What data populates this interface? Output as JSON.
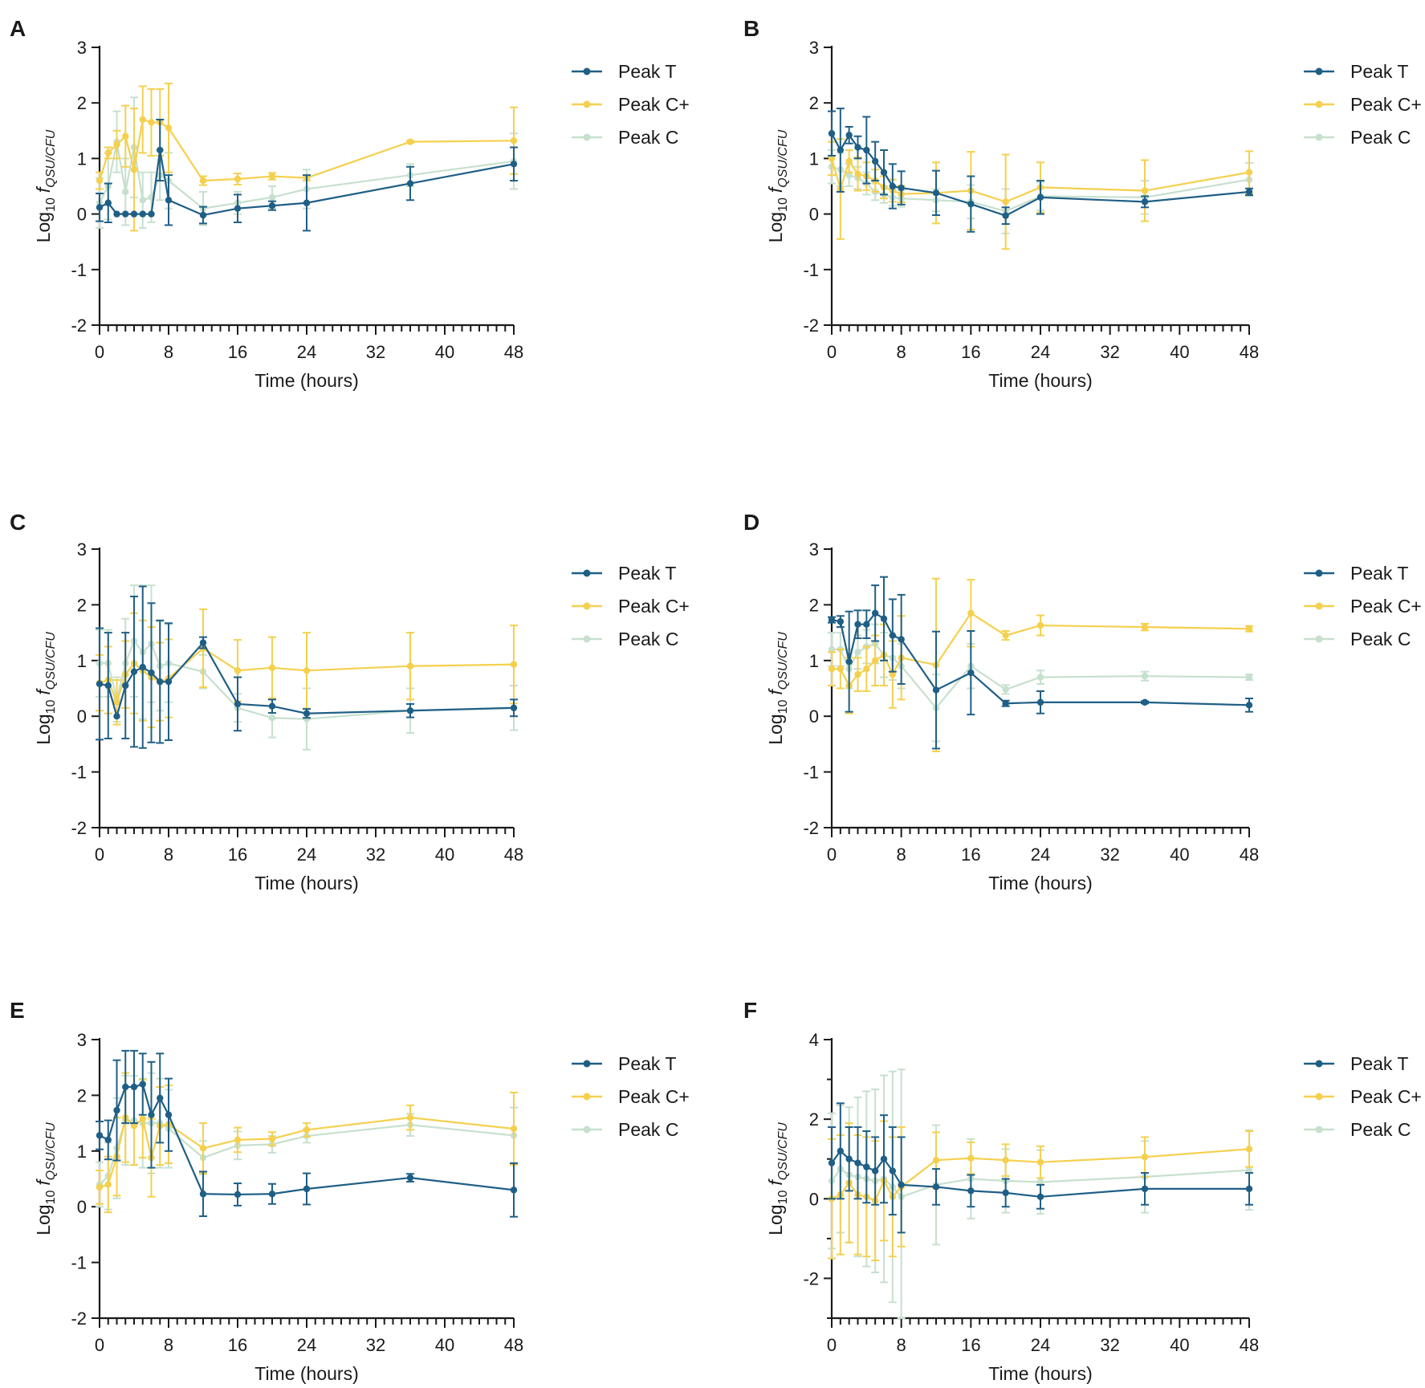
{
  "figure_title": "",
  "series_colors": {
    "Peak T": "#1f5f86",
    "Peak C+": "#f5d04e",
    "Peak C": "#c7e0ce"
  },
  "chart_data": [
    {
      "type": "line",
      "panel": "A",
      "xlabel": "Time (hours)",
      "ylabel_prefix": "Log",
      "ylabel_sub": "10",
      "ylabel_f": "f",
      "ylabel_fsub": "QSU/CFU",
      "xlim": [
        0,
        48
      ],
      "ylim": [
        -2,
        3
      ],
      "xticks": [
        0,
        8,
        16,
        24,
        32,
        40,
        48
      ],
      "yticks": [
        -2,
        -1,
        0,
        1,
        2,
        3
      ],
      "xtick_labels": [
        "0",
        "8",
        "16",
        "24",
        "32",
        "40",
        "48"
      ],
      "ytick_labels": [
        "-2",
        "-1",
        "0",
        "1",
        "2",
        "3"
      ],
      "legend": [
        "Peak T",
        "Peak C+",
        "Peak C"
      ],
      "x": [
        0,
        1,
        2,
        3,
        4,
        5,
        6,
        7,
        8,
        12,
        16,
        20,
        24,
        36,
        48
      ],
      "series": [
        {
          "name": "Peak T",
          "values": [
            0.12,
            0.2,
            0.0,
            0.0,
            0.0,
            0.0,
            0.0,
            1.15,
            0.25,
            -0.02,
            0.1,
            0.15,
            0.2,
            0.55,
            0.9
          ],
          "errors": [
            0.25,
            0.35,
            0,
            0,
            0,
            0,
            0,
            0.55,
            0.45,
            0.15,
            0.25,
            0.08,
            0.5,
            0.3,
            0.3
          ]
        },
        {
          "name": "Peak C+",
          "values": [
            0.6,
            1.1,
            1.25,
            1.4,
            0.8,
            1.7,
            1.65,
            1.65,
            1.55,
            0.6,
            0.63,
            0.68,
            0.65,
            1.3,
            1.32
          ],
          "errors": [
            0.15,
            0.1,
            0.25,
            0.55,
            1.1,
            0.6,
            0.6,
            0.6,
            0.8,
            0.08,
            0.1,
            0.06,
            0.05,
            0.02,
            0.6
          ]
        },
        {
          "name": "Peak C",
          "values": [
            0.2,
            0.5,
            1.3,
            0.4,
            1.2,
            0.25,
            0.3,
            0.7,
            0.6,
            0.1,
            0.2,
            0.3,
            0.45,
            0.7,
            0.95
          ],
          "errors": [
            0.45,
            0.6,
            0.55,
            0.6,
            0.9,
            0.5,
            0.45,
            0.45,
            0.5,
            0.3,
            0.2,
            0.2,
            0.35,
            0.2,
            0.5
          ]
        }
      ]
    },
    {
      "type": "line",
      "panel": "B",
      "xlabel": "Time (hours)",
      "ylabel_prefix": "Log",
      "ylabel_sub": "10",
      "ylabel_f": "f",
      "ylabel_fsub": "QSU/CFU",
      "xlim": [
        0,
        48
      ],
      "ylim": [
        -2,
        3
      ],
      "xticks": [
        0,
        8,
        16,
        24,
        32,
        40,
        48
      ],
      "yticks": [
        -2,
        -1,
        0,
        1,
        2,
        3
      ],
      "xtick_labels": [
        "0",
        "8",
        "16",
        "24",
        "32",
        "40",
        "48"
      ],
      "ytick_labels": [
        "-2",
        "-1",
        "0",
        "1",
        "2",
        "3"
      ],
      "legend": [
        "Peak T",
        "Peak C+",
        "Peak C"
      ],
      "x": [
        0,
        1,
        2,
        3,
        4,
        5,
        6,
        7,
        8,
        12,
        16,
        20,
        24,
        36,
        48
      ],
      "series": [
        {
          "name": "Peak T",
          "values": [
            1.45,
            1.15,
            1.42,
            1.2,
            1.15,
            0.95,
            0.75,
            0.5,
            0.47,
            0.38,
            0.18,
            -0.03,
            0.3,
            0.22,
            0.4
          ],
          "errors": [
            0.4,
            0.75,
            0.15,
            0.2,
            0.6,
            0.35,
            0.4,
            0.4,
            0.3,
            0.4,
            0.5,
            0.15,
            0.3,
            0.1,
            0.06
          ]
        },
        {
          "name": "Peak C+",
          "values": [
            1.0,
            0.45,
            0.95,
            0.72,
            0.68,
            0.6,
            0.48,
            0.42,
            0.36,
            0.38,
            0.42,
            0.22,
            0.48,
            0.42,
            0.75
          ],
          "errors": [
            0.3,
            0.9,
            0.2,
            0.3,
            0.25,
            0.2,
            0.2,
            0.2,
            0.15,
            0.55,
            0.7,
            0.85,
            0.45,
            0.55,
            0.38
          ]
        },
        {
          "name": "Peak C",
          "values": [
            0.85,
            0.8,
            0.7,
            0.65,
            0.55,
            0.4,
            0.35,
            0.3,
            0.28,
            0.25,
            0.22,
            0.05,
            0.32,
            0.3,
            0.62
          ],
          "errors": [
            0.3,
            0.3,
            0.2,
            0.2,
            0.2,
            0.15,
            0.15,
            0.15,
            0.15,
            0.2,
            0.3,
            0.4,
            0.25,
            0.3,
            0.3
          ]
        }
      ]
    },
    {
      "type": "line",
      "panel": "C",
      "xlabel": "Time (hours)",
      "ylabel_prefix": "Log",
      "ylabel_sub": "10",
      "ylabel_f": "f",
      "ylabel_fsub": "QSU/CFU",
      "xlim": [
        0,
        48
      ],
      "ylim": [
        -2,
        3
      ],
      "xticks": [
        0,
        8,
        16,
        24,
        32,
        40,
        48
      ],
      "yticks": [
        -2,
        -1,
        0,
        1,
        2,
        3
      ],
      "xtick_labels": [
        "0",
        "8",
        "16",
        "24",
        "32",
        "40",
        "48"
      ],
      "ytick_labels": [
        "-2",
        "-1",
        "0",
        "1",
        "2",
        "3"
      ],
      "legend": [
        "Peak T",
        "Peak C+",
        "Peak C"
      ],
      "x": [
        0,
        1,
        2,
        3,
        4,
        5,
        6,
        7,
        8,
        12,
        16,
        20,
        24,
        36,
        48
      ],
      "series": [
        {
          "name": "Peak T",
          "values": [
            0.58,
            0.55,
            0.0,
            0.55,
            0.8,
            0.88,
            0.78,
            0.62,
            0.62,
            1.32,
            0.22,
            0.18,
            0.05,
            0.1,
            0.15
          ],
          "errors": [
            1.0,
            0.95,
            0,
            0.95,
            1.35,
            1.45,
            1.25,
            1.1,
            1.05,
            0.1,
            0.48,
            0.12,
            0.08,
            0.12,
            0.15
          ]
        },
        {
          "name": "Peak C+",
          "values": [
            0.6,
            0.65,
            0.25,
            0.75,
            0.95,
            0.82,
            0.7,
            0.62,
            0.68,
            1.22,
            0.82,
            0.87,
            0.82,
            0.9,
            0.93
          ],
          "errors": [
            0.5,
            0.6,
            0.4,
            0.6,
            0.9,
            0.9,
            0.9,
            0.7,
            0.7,
            0.7,
            0.55,
            0.55,
            0.68,
            0.6,
            0.7
          ]
        },
        {
          "name": "Peak C",
          "values": [
            0.95,
            0.95,
            0.3,
            0.95,
            1.35,
            1.15,
            1.3,
            0.9,
            0.95,
            0.8,
            0.15,
            -0.03,
            -0.05,
            0.1,
            0.15
          ],
          "errors": [
            0.6,
            0.6,
            0.4,
            0.8,
            1.0,
            1.2,
            1.05,
            0.8,
            0.7,
            0.3,
            0.25,
            0.35,
            0.55,
            0.4,
            0.4
          ]
        }
      ]
    },
    {
      "type": "line",
      "panel": "D",
      "xlabel": "Time (hours)",
      "ylabel_prefix": "Log",
      "ylabel_sub": "10",
      "ylabel_f": "f",
      "ylabel_fsub": "QSU/CFU",
      "xlim": [
        0,
        48
      ],
      "ylim": [
        -2,
        3
      ],
      "xticks": [
        0,
        8,
        16,
        24,
        32,
        40,
        48
      ],
      "yticks": [
        -2,
        -1,
        0,
        1,
        2,
        3
      ],
      "xtick_labels": [
        "0",
        "8",
        "16",
        "24",
        "32",
        "40",
        "48"
      ],
      "ytick_labels": [
        "-2",
        "-1",
        "0",
        "1",
        "2",
        "3"
      ],
      "legend": [
        "Peak T",
        "Peak C+",
        "Peak C"
      ],
      "x": [
        0,
        1,
        2,
        3,
        4,
        5,
        6,
        7,
        8,
        12,
        16,
        20,
        24,
        36,
        48
      ],
      "series": [
        {
          "name": "Peak T",
          "values": [
            1.73,
            1.7,
            0.98,
            1.65,
            1.65,
            1.85,
            1.75,
            1.45,
            1.38,
            0.47,
            0.78,
            0.23,
            0.25,
            0.25,
            0.2
          ],
          "errors": [
            0.05,
            0.1,
            0.9,
            0.25,
            0.25,
            0.5,
            0.75,
            0.65,
            0.8,
            1.05,
            0.75,
            0.05,
            0.2,
            0.02,
            0.12
          ]
        },
        {
          "name": "Peak C+",
          "values": [
            0.85,
            0.85,
            0.55,
            0.75,
            0.85,
            1.0,
            1.1,
            0.75,
            1.05,
            0.92,
            1.85,
            1.45,
            1.63,
            1.6,
            1.57
          ],
          "errors": [
            0.3,
            0.35,
            0.5,
            0.3,
            0.4,
            0.45,
            0.55,
            0.6,
            0.75,
            1.55,
            0.6,
            0.08,
            0.18,
            0.06,
            0.05
          ]
        },
        {
          "name": "Peak C",
          "values": [
            1.2,
            1.2,
            0.85,
            1.15,
            1.25,
            1.3,
            1.1,
            1.05,
            0.9,
            0.15,
            0.9,
            0.48,
            0.7,
            0.72,
            0.7
          ],
          "errors": [
            0.3,
            0.3,
            0.35,
            0.3,
            0.3,
            0.35,
            0.4,
            0.4,
            0.4,
            0.6,
            0.4,
            0.08,
            0.12,
            0.08,
            0.05
          ]
        }
      ]
    },
    {
      "type": "line",
      "panel": "E",
      "xlabel": "Time (hours)",
      "ylabel_prefix": "Log",
      "ylabel_sub": "10",
      "ylabel_f": "f",
      "ylabel_fsub": "QSU/CFU",
      "xlim": [
        0,
        48
      ],
      "ylim": [
        -2,
        3
      ],
      "xticks": [
        0,
        8,
        16,
        24,
        32,
        40,
        48
      ],
      "yticks": [
        -2,
        -1,
        0,
        1,
        2,
        3
      ],
      "xtick_labels": [
        "0",
        "8",
        "16",
        "24",
        "32",
        "40",
        "48"
      ],
      "ytick_labels": [
        "-2",
        "-1",
        "0",
        "1",
        "2",
        "3"
      ],
      "legend": [
        "Peak T",
        "Peak C+",
        "Peak C"
      ],
      "x": [
        0,
        1,
        2,
        3,
        4,
        5,
        6,
        7,
        8,
        12,
        16,
        20,
        24,
        36,
        48
      ],
      "series": [
        {
          "name": "Peak T",
          "values": [
            1.28,
            1.2,
            1.73,
            2.15,
            2.15,
            2.2,
            1.65,
            1.95,
            1.65,
            0.23,
            0.22,
            0.23,
            0.32,
            0.52,
            0.3
          ],
          "errors": [
            0.25,
            0.35,
            0.9,
            0.65,
            0.65,
            0.55,
            0.95,
            0.8,
            0.65,
            0.4,
            0.2,
            0.18,
            0.28,
            0.07,
            0.48
          ]
        },
        {
          "name": "Peak C+",
          "values": [
            0.35,
            0.4,
            0.9,
            1.6,
            1.45,
            1.58,
            0.88,
            1.45,
            1.48,
            1.05,
            1.2,
            1.22,
            1.38,
            1.6,
            1.4
          ],
          "errors": [
            0.3,
            0.5,
            0.7,
            0.8,
            0.7,
            0.7,
            0.7,
            0.7,
            0.7,
            0.45,
            0.22,
            0.12,
            0.12,
            0.22,
            0.65
          ]
        },
        {
          "name": "Peak C",
          "values": [
            0.4,
            0.55,
            1.05,
            1.55,
            1.55,
            1.5,
            1.5,
            1.5,
            1.4,
            0.88,
            1.1,
            1.12,
            1.27,
            1.47,
            1.28
          ],
          "errors": [
            0.4,
            0.6,
            0.9,
            0.8,
            0.8,
            0.8,
            0.9,
            0.8,
            0.7,
            0.3,
            0.25,
            0.15,
            0.12,
            0.2,
            0.5
          ]
        }
      ]
    },
    {
      "type": "line",
      "panel": "F",
      "xlabel": "Time (hours)",
      "ylabel_prefix": "Log",
      "ylabel_sub": "10",
      "ylabel_f": "f",
      "ylabel_fsub": "QSU/CFU",
      "xlim": [
        0,
        48
      ],
      "ylim": [
        -3,
        4
      ],
      "xticks": [
        0,
        8,
        16,
        24,
        32,
        40,
        48
      ],
      "yticks": [
        -2,
        0,
        2,
        4
      ],
      "xtick_labels": [
        "0",
        "8",
        "16",
        "24",
        "32",
        "40",
        "48"
      ],
      "ytick_labels": [
        "-2",
        "0",
        "2",
        "4"
      ],
      "legend": [
        "Peak T",
        "Peak C+",
        "Peak C"
      ],
      "x": [
        0,
        1,
        2,
        3,
        4,
        5,
        6,
        7,
        8,
        12,
        16,
        20,
        24,
        36,
        48
      ],
      "series": [
        {
          "name": "Peak T",
          "values": [
            0.9,
            1.2,
            1.0,
            0.9,
            0.8,
            0.7,
            1.0,
            0.7,
            0.35,
            0.3,
            0.2,
            0.15,
            0.05,
            0.25,
            0.25
          ],
          "errors": [
            0.9,
            1.2,
            0.8,
            0.9,
            0.9,
            0.85,
            1.1,
            1.1,
            1.2,
            0.45,
            0.4,
            0.35,
            0.3,
            0.4,
            0.4
          ]
        },
        {
          "name": "Peak C+",
          "values": [
            0.0,
            0.1,
            0.4,
            0.1,
            0.05,
            -0.05,
            0.45,
            0.05,
            0.3,
            0.97,
            1.02,
            0.97,
            0.92,
            1.05,
            1.25
          ],
          "errors": [
            1.5,
            1.5,
            1.5,
            1.5,
            1.5,
            1.5,
            1.5,
            1.5,
            1.5,
            0.7,
            0.4,
            0.4,
            0.4,
            0.5,
            0.45
          ]
        },
        {
          "name": "Peak C",
          "values": [
            0.45,
            0.75,
            0.6,
            0.55,
            0.5,
            0.45,
            0.5,
            0.3,
            0.05,
            0.35,
            0.5,
            0.45,
            0.42,
            0.55,
            0.72
          ],
          "errors": [
            1.7,
            1.6,
            1.7,
            2.0,
            2.2,
            2.3,
            2.6,
            2.9,
            3.2,
            1.5,
            1.0,
            0.8,
            0.8,
            0.9,
            1.0
          ]
        }
      ]
    }
  ]
}
